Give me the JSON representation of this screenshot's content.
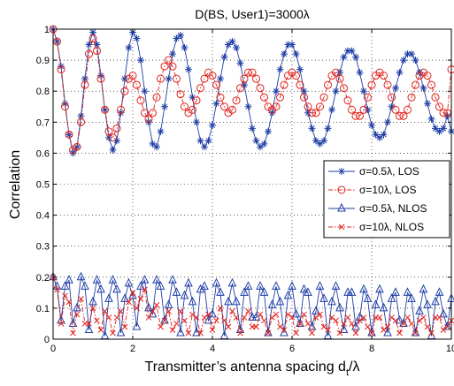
{
  "chart_data": {
    "type": "line",
    "title": "D(BS, User1)=3000λ",
    "xlabel": "Transmitter’s antenna spacing d",
    "xlabel_subscript": "t",
    "xlabel_suffix": "/λ",
    "ylabel": "Correlation",
    "xlim": [
      0,
      10
    ],
    "ylim": [
      0,
      1
    ],
    "x_ticks": [
      "0",
      "2",
      "4",
      "6",
      "8",
      "10"
    ],
    "y_ticks": [
      "0",
      "0.1",
      "0.2",
      "0.3",
      "0.4",
      "0.5",
      "0.6",
      "0.7",
      "0.8",
      "0.9",
      "1"
    ],
    "grid": true,
    "legend_position": "right",
    "series": [
      {
        "name": "σ=0.5λ, LOS",
        "color": "#1f3fa6",
        "line": "solid",
        "marker": "star",
        "x": [
          0,
          0.1,
          0.2,
          0.3,
          0.4,
          0.5,
          0.6,
          0.7,
          0.8,
          0.9,
          1,
          1.1,
          1.2,
          1.3,
          1.4,
          1.5,
          1.6,
          1.7,
          1.8,
          1.9,
          2,
          2.1,
          2.2,
          2.3,
          2.4,
          2.5,
          2.6,
          2.7,
          2.8,
          2.9,
          3,
          3.1,
          3.2,
          3.3,
          3.4,
          3.5,
          3.6,
          3.7,
          3.8,
          3.9,
          4,
          4.1,
          4.2,
          4.3,
          4.4,
          4.5,
          4.6,
          4.7,
          4.8,
          4.9,
          5,
          5.1,
          5.2,
          5.3,
          5.4,
          5.5,
          5.6,
          5.7,
          5.8,
          5.9,
          6,
          6.1,
          6.2,
          6.3,
          6.4,
          6.5,
          6.6,
          6.7,
          6.8,
          6.9,
          7,
          7.1,
          7.2,
          7.3,
          7.4,
          7.5,
          7.6,
          7.7,
          7.8,
          7.9,
          8,
          8.1,
          8.2,
          8.3,
          8.4,
          8.5,
          8.6,
          8.7,
          8.8,
          8.9,
          9,
          9.1,
          9.2,
          9.3,
          9.4,
          9.5,
          9.6,
          9.7,
          9.8,
          9.9,
          10
        ],
        "y": [
          1,
          0.96,
          0.88,
          0.76,
          0.66,
          0.6,
          0.62,
          0.72,
          0.84,
          0.95,
          0.99,
          0.95,
          0.85,
          0.74,
          0.65,
          0.61,
          0.64,
          0.73,
          0.84,
          0.94,
          0.99,
          0.97,
          0.9,
          0.8,
          0.7,
          0.63,
          0.62,
          0.67,
          0.75,
          0.84,
          0.92,
          0.97,
          0.98,
          0.94,
          0.87,
          0.78,
          0.7,
          0.64,
          0.62,
          0.64,
          0.69,
          0.76,
          0.84,
          0.91,
          0.95,
          0.96,
          0.94,
          0.89,
          0.82,
          0.75,
          0.68,
          0.64,
          0.62,
          0.63,
          0.67,
          0.73,
          0.8,
          0.87,
          0.92,
          0.95,
          0.95,
          0.92,
          0.87,
          0.8,
          0.73,
          0.68,
          0.64,
          0.63,
          0.64,
          0.68,
          0.74,
          0.8,
          0.86,
          0.91,
          0.93,
          0.93,
          0.91,
          0.86,
          0.8,
          0.74,
          0.69,
          0.66,
          0.65,
          0.66,
          0.7,
          0.75,
          0.81,
          0.86,
          0.9,
          0.92,
          0.92,
          0.9,
          0.86,
          0.81,
          0.76,
          0.71,
          0.68,
          0.67,
          0.68,
          0.72,
          0.67
        ]
      },
      {
        "name": "σ=10λ, LOS",
        "color": "#e0201b",
        "line": "dashdot",
        "marker": "circle",
        "x": [
          0,
          0.1,
          0.2,
          0.3,
          0.4,
          0.5,
          0.6,
          0.7,
          0.8,
          0.9,
          1,
          1.1,
          1.2,
          1.3,
          1.4,
          1.5,
          1.6,
          1.7,
          1.8,
          1.9,
          2,
          2.1,
          2.2,
          2.3,
          2.4,
          2.5,
          2.6,
          2.7,
          2.8,
          2.9,
          3,
          3.1,
          3.2,
          3.3,
          3.4,
          3.5,
          3.6,
          3.7,
          3.8,
          3.9,
          4,
          4.1,
          4.2,
          4.3,
          4.4,
          4.5,
          4.6,
          4.7,
          4.8,
          4.9,
          5,
          5.1,
          5.2,
          5.3,
          5.4,
          5.5,
          5.6,
          5.7,
          5.8,
          5.9,
          6,
          6.1,
          6.2,
          6.3,
          6.4,
          6.5,
          6.6,
          6.7,
          6.8,
          6.9,
          7,
          7.1,
          7.2,
          7.3,
          7.4,
          7.5,
          7.6,
          7.7,
          7.8,
          7.9,
          8,
          8.1,
          8.2,
          8.3,
          8.4,
          8.5,
          8.6,
          8.7,
          8.8,
          8.9,
          9,
          9.1,
          9.2,
          9.3,
          9.4,
          9.5,
          9.6,
          9.7,
          9.8,
          9.9,
          10
        ],
        "y": [
          1,
          0.96,
          0.87,
          0.75,
          0.66,
          0.61,
          0.62,
          0.7,
          0.82,
          0.92,
          0.97,
          0.93,
          0.84,
          0.74,
          0.67,
          0.65,
          0.68,
          0.74,
          0.8,
          0.84,
          0.85,
          0.82,
          0.77,
          0.73,
          0.71,
          0.73,
          0.78,
          0.84,
          0.88,
          0.9,
          0.88,
          0.84,
          0.79,
          0.75,
          0.73,
          0.74,
          0.77,
          0.81,
          0.84,
          0.86,
          0.85,
          0.82,
          0.78,
          0.75,
          0.73,
          0.74,
          0.77,
          0.81,
          0.84,
          0.86,
          0.86,
          0.84,
          0.81,
          0.78,
          0.75,
          0.74,
          0.75,
          0.78,
          0.82,
          0.85,
          0.86,
          0.85,
          0.82,
          0.78,
          0.75,
          0.73,
          0.73,
          0.75,
          0.78,
          0.82,
          0.85,
          0.86,
          0.84,
          0.81,
          0.77,
          0.74,
          0.72,
          0.72,
          0.74,
          0.78,
          0.82,
          0.85,
          0.86,
          0.85,
          0.82,
          0.78,
          0.74,
          0.72,
          0.72,
          0.74,
          0.78,
          0.82,
          0.85,
          0.86,
          0.85,
          0.82,
          0.78,
          0.75,
          0.73,
          0.73,
          0.87
        ]
      },
      {
        "name": "σ=0.5λ, NLOS",
        "color": "#1f3fa6",
        "line": "solid",
        "marker": "triangle",
        "x": [
          0,
          0.1,
          0.2,
          0.3,
          0.4,
          0.5,
          0.6,
          0.7,
          0.8,
          0.9,
          1,
          1.1,
          1.2,
          1.3,
          1.4,
          1.5,
          1.6,
          1.7,
          1.8,
          1.9,
          2,
          2.1,
          2.2,
          2.3,
          2.4,
          2.5,
          2.6,
          2.7,
          2.8,
          2.9,
          3,
          3.1,
          3.2,
          3.3,
          3.4,
          3.5,
          3.6,
          3.7,
          3.8,
          3.9,
          4,
          4.1,
          4.2,
          4.3,
          4.4,
          4.5,
          4.6,
          4.7,
          4.8,
          4.9,
          5,
          5.1,
          5.2,
          5.3,
          5.4,
          5.5,
          5.6,
          5.7,
          5.8,
          5.9,
          6,
          6.1,
          6.2,
          6.3,
          6.4,
          6.5,
          6.6,
          6.7,
          6.8,
          6.9,
          7,
          7.1,
          7.2,
          7.3,
          7.4,
          7.5,
          7.6,
          7.7,
          7.8,
          7.9,
          8,
          8.1,
          8.2,
          8.3,
          8.4,
          8.5,
          8.6,
          8.7,
          8.8,
          8.9,
          9,
          9.1,
          9.2,
          9.3,
          9.4,
          9.5,
          9.6,
          9.7,
          9.8,
          9.9,
          10
        ],
        "y": [
          0.2,
          0.17,
          0.06,
          0.17,
          0.19,
          0.05,
          0.1,
          0.2,
          0.17,
          0.03,
          0.12,
          0.19,
          0.16,
          0.01,
          0.13,
          0.19,
          0.16,
          0.02,
          0.13,
          0.18,
          0.14,
          0.04,
          0.17,
          0.19,
          0.1,
          0.08,
          0.19,
          0.17,
          0.06,
          0.11,
          0.19,
          0.15,
          0.02,
          0.14,
          0.18,
          0.12,
          0.02,
          0.16,
          0.17,
          0.06,
          0.08,
          0.18,
          0.15,
          0.01,
          0.12,
          0.18,
          0.12,
          0.03,
          0.15,
          0.17,
          0.07,
          0.07,
          0.17,
          0.15,
          0.02,
          0.11,
          0.17,
          0.12,
          0.02,
          0.14,
          0.17,
          0.08,
          0.05,
          0.16,
          0.15,
          0.04,
          0.09,
          0.17,
          0.13,
          0.01,
          0.12,
          0.17,
          0.1,
          0.03,
          0.15,
          0.15,
          0.04,
          0.07,
          0.16,
          0.13,
          0.02,
          0.11,
          0.16,
          0.1,
          0.02,
          0.13,
          0.15,
          0.06,
          0.05,
          0.15,
          0.13,
          0.02,
          0.09,
          0.16,
          0.11,
          0.01,
          0.12,
          0.15,
          0.08,
          0.04,
          0.13
        ]
      },
      {
        "name": "σ=10λ, NLOS",
        "color": "#e0201b",
        "line": "dashdot",
        "marker": "x",
        "x": [
          0,
          0.1,
          0.2,
          0.3,
          0.4,
          0.5,
          0.6,
          0.7,
          0.8,
          0.9,
          1,
          1.1,
          1.2,
          1.3,
          1.4,
          1.5,
          1.6,
          1.7,
          1.8,
          1.9,
          2,
          2.1,
          2.2,
          2.3,
          2.4,
          2.5,
          2.6,
          2.7,
          2.8,
          2.9,
          3,
          3.1,
          3.2,
          3.3,
          3.4,
          3.5,
          3.6,
          3.7,
          3.8,
          3.9,
          4,
          4.1,
          4.2,
          4.3,
          4.4,
          4.5,
          4.6,
          4.7,
          4.8,
          4.9,
          5,
          5.1,
          5.2,
          5.3,
          5.4,
          5.5,
          5.6,
          5.7,
          5.8,
          5.9,
          6,
          6.1,
          6.2,
          6.3,
          6.4,
          6.5,
          6.6,
          6.7,
          6.8,
          6.9,
          7,
          7.1,
          7.2,
          7.3,
          7.4,
          7.5,
          7.6,
          7.7,
          7.8,
          7.9,
          8,
          8.1,
          8.2,
          8.3,
          8.4,
          8.5,
          8.6,
          8.7,
          8.8,
          8.9,
          9,
          9.1,
          9.2,
          9.3,
          9.4,
          9.5,
          9.6,
          9.7,
          9.8,
          9.9,
          10
        ],
        "y": [
          0.2,
          0.16,
          0.05,
          0.14,
          0.12,
          0.02,
          0.08,
          0.13,
          0.05,
          0.05,
          0.1,
          0.06,
          0.03,
          0.09,
          0.07,
          0.02,
          0.07,
          0.09,
          0.04,
          0.12,
          0.15,
          0.1,
          0.13,
          0.16,
          0.07,
          0.09,
          0.11,
          0.04,
          0.06,
          0.09,
          0.03,
          0.05,
          0.09,
          0.06,
          0.02,
          0.08,
          0.07,
          0.02,
          0.07,
          0.08,
          0.03,
          0.06,
          0.1,
          0.06,
          0.04,
          0.09,
          0.07,
          0.02,
          0.07,
          0.09,
          0.04,
          0.04,
          0.08,
          0.06,
          0.02,
          0.07,
          0.08,
          0.04,
          0.03,
          0.08,
          0.07,
          0.02,
          0.05,
          0.08,
          0.05,
          0.02,
          0.07,
          0.08,
          0.04,
          0.03,
          0.07,
          0.06,
          0.02,
          0.05,
          0.07,
          0.05,
          0.02,
          0.06,
          0.07,
          0.04,
          0.02,
          0.07,
          0.07,
          0.03,
          0.04,
          0.07,
          0.06,
          0.02,
          0.05,
          0.07,
          0.05,
          0.02,
          0.06,
          0.07,
          0.04,
          0.02,
          0.07,
          0.07,
          0.03,
          0.04,
          0.06
        ]
      }
    ]
  }
}
